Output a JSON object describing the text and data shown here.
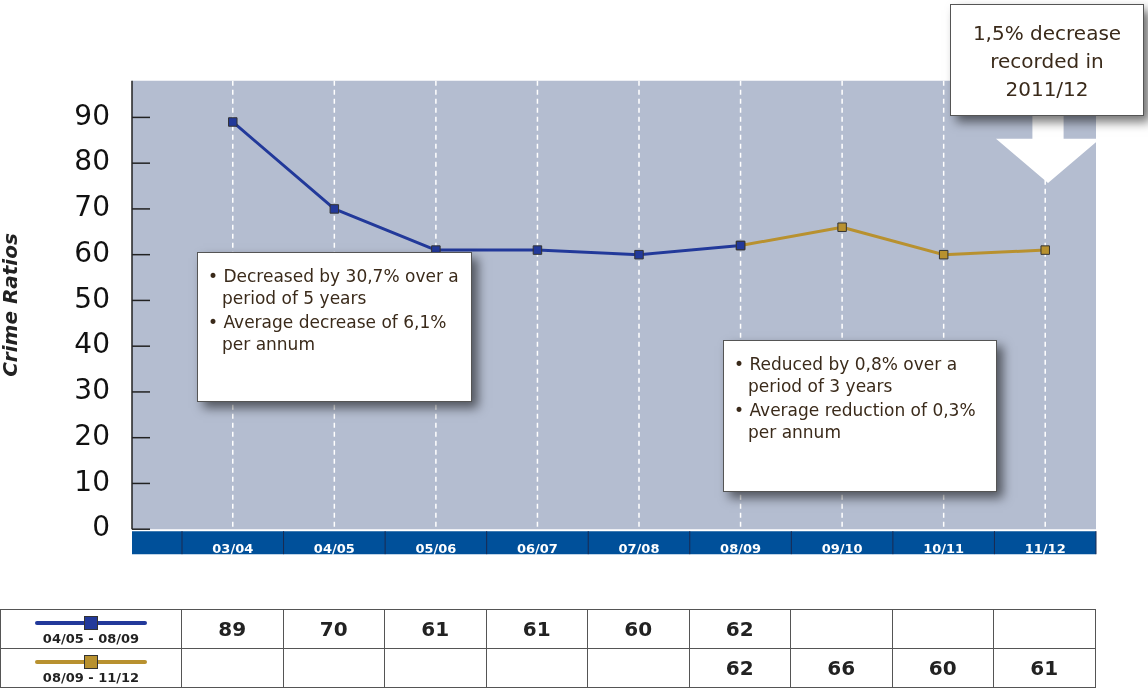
{
  "chart_data": {
    "type": "line",
    "ylabel": "Crime Ratios",
    "categories": [
      "03/04",
      "04/05",
      "05/06",
      "06/07",
      "07/08",
      "08/09",
      "09/10",
      "10/11",
      "11/12"
    ],
    "series": [
      {
        "name": "04/05 - 08/09",
        "color": "#22399a",
        "values": [
          89,
          70,
          61,
          61,
          60,
          62,
          null,
          null,
          null
        ]
      },
      {
        "name": "08/09 - 11/12",
        "color": "#b8912f",
        "values": [
          null,
          null,
          null,
          null,
          null,
          62,
          66,
          60,
          61
        ]
      }
    ],
    "ylim": [
      0,
      98
    ],
    "yticks": [
      0,
      10,
      20,
      30,
      40,
      50,
      60,
      70,
      80,
      90
    ],
    "grid": "x",
    "marker": "square",
    "line_style": "solid",
    "legend": "bottom left",
    "data_labels": true,
    "annotations": [
      "• Decreased by 30,7% over a period of 5 years",
      "• Average decrease of 6,1% per annum",
      "• Reduced by 0,8% over a period of 3 years",
      "• Average reduction of 0,3% per annum",
      "1,5% decrease recorded in 2011/12"
    ]
  }
}
